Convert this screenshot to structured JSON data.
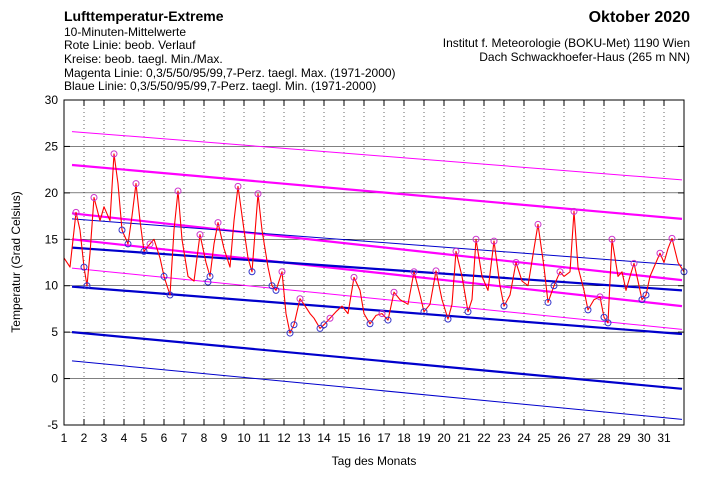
{
  "header": {
    "title": "Lufttemperatur-Extreme",
    "month": "Oktober 2020",
    "lines": [
      "10-Minuten-Mittelwerte",
      "Rote Linie: beob. Verlauf",
      "Kreise: beob. taegl. Min./Max.",
      "Magenta Linie: 0,3/5/50/95/99,7-Perz. taegl. Max. (1971-2000)",
      "Blaue Linie: 0,3/5/50/95/99,7-Perz. taegl. Min. (1971-2000)"
    ],
    "institute": "Institut f. Meteorologie (BOKU-Met) 1190 Wien",
    "location": "Dach Schwackhoefer-Haus (265 m NN)"
  },
  "chart_data": {
    "type": "line",
    "xlabel": "Tag des Monats",
    "ylabel": "Temperatur (Grad Celsius)",
    "xlim": [
      1,
      32
    ],
    "ylim": [
      -5,
      30
    ],
    "xticks": [
      "1",
      "2",
      "3",
      "4",
      "5",
      "6",
      "7",
      "8",
      "9",
      "10",
      "11",
      "12",
      "13",
      "14",
      "15",
      "16",
      "17",
      "18",
      "19",
      "20",
      "21",
      "22",
      "23",
      "24",
      "25",
      "26",
      "27",
      "28",
      "29",
      "30",
      "31"
    ],
    "yticks": [
      "-5",
      "0",
      "5",
      "10",
      "15",
      "20",
      "25",
      "30"
    ],
    "grid": true,
    "colors": {
      "observed": "#ff0000",
      "max_percentiles": "#ff00ff",
      "min_percentiles": "#0000cc",
      "circles": "#9900cc"
    },
    "max_percentiles": [
      {
        "percentile": "0,3",
        "start": 11.9,
        "end": 5.3
      },
      {
        "percentile": "5",
        "start": 15.0,
        "end": 7.8
      },
      {
        "percentile": "50",
        "start": 17.8,
        "end": 10.6
      },
      {
        "percentile": "95",
        "start": 23.0,
        "end": 17.2
      },
      {
        "percentile": "99,7",
        "start": 26.6,
        "end": 21.4
      }
    ],
    "min_percentiles": [
      {
        "percentile": "0,3",
        "start": 1.9,
        "end": -4.4
      },
      {
        "percentile": "5",
        "start": 5.0,
        "end": -1.1
      },
      {
        "percentile": "50",
        "start": 9.9,
        "end": 4.8
      },
      {
        "percentile": "95",
        "start": 14.1,
        "end": 9.5
      },
      {
        "percentile": "99,7",
        "start": 17.2,
        "end": 12.2
      }
    ],
    "observed": [
      [
        1.0,
        13.0
      ],
      [
        1.3,
        12.0
      ],
      [
        1.6,
        17.9
      ],
      [
        1.8,
        16.0
      ],
      [
        2.0,
        12.0
      ],
      [
        2.15,
        10.0
      ],
      [
        2.3,
        13.5
      ],
      [
        2.5,
        19.5
      ],
      [
        2.8,
        17.0
      ],
      [
        3.0,
        18.5
      ],
      [
        3.3,
        17.0
      ],
      [
        3.5,
        24.2
      ],
      [
        3.7,
        21.0
      ],
      [
        3.9,
        16.0
      ],
      [
        4.2,
        14.5
      ],
      [
        4.4,
        17.5
      ],
      [
        4.6,
        21.0
      ],
      [
        4.8,
        17.0
      ],
      [
        5.0,
        13.7
      ],
      [
        5.3,
        14.5
      ],
      [
        5.5,
        15.0
      ],
      [
        5.8,
        13.0
      ],
      [
        6.0,
        11.0
      ],
      [
        6.3,
        9.0
      ],
      [
        6.5,
        16.0
      ],
      [
        6.7,
        20.2
      ],
      [
        6.9,
        15.0
      ],
      [
        7.2,
        11.0
      ],
      [
        7.5,
        10.5
      ],
      [
        7.8,
        15.5
      ],
      [
        8.1,
        12.5
      ],
      [
        8.3,
        11.0
      ],
      [
        8.5,
        14.5
      ],
      [
        8.7,
        16.8
      ],
      [
        9.0,
        14.0
      ],
      [
        9.3,
        12.0
      ],
      [
        9.5,
        17.0
      ],
      [
        9.7,
        20.7
      ],
      [
        10.0,
        16.0
      ],
      [
        10.2,
        13.0
      ],
      [
        10.4,
        11.5
      ],
      [
        10.7,
        19.9
      ],
      [
        10.9,
        16.0
      ],
      [
        11.2,
        12.0
      ],
      [
        11.4,
        10.0
      ],
      [
        11.6,
        9.5
      ],
      [
        11.9,
        11.5
      ],
      [
        12.1,
        7.0
      ],
      [
        12.3,
        4.9
      ],
      [
        12.5,
        5.8
      ],
      [
        12.8,
        8.6
      ],
      [
        13.0,
        8.0
      ],
      [
        13.3,
        7.0
      ],
      [
        13.5,
        6.5
      ],
      [
        13.8,
        5.4
      ],
      [
        14.0,
        5.8
      ],
      [
        14.3,
        6.5
      ],
      [
        14.6,
        7.2
      ],
      [
        14.9,
        7.8
      ],
      [
        15.2,
        7.0
      ],
      [
        15.5,
        10.9
      ],
      [
        15.8,
        9.5
      ],
      [
        16.0,
        7.0
      ],
      [
        16.3,
        5.9
      ],
      [
        16.6,
        6.8
      ],
      [
        16.9,
        7.0
      ],
      [
        17.2,
        6.3
      ],
      [
        17.5,
        9.3
      ],
      [
        17.8,
        8.5
      ],
      [
        18.2,
        8.0
      ],
      [
        18.5,
        11.5
      ],
      [
        18.8,
        9.0
      ],
      [
        19.0,
        7.2
      ],
      [
        19.3,
        8.0
      ],
      [
        19.6,
        11.6
      ],
      [
        19.9,
        8.5
      ],
      [
        20.2,
        6.4
      ],
      [
        20.4,
        8.0
      ],
      [
        20.6,
        13.7
      ],
      [
        20.9,
        11.0
      ],
      [
        21.2,
        7.2
      ],
      [
        21.4,
        8.5
      ],
      [
        21.6,
        15.0
      ],
      [
        21.9,
        11.0
      ],
      [
        22.2,
        9.5
      ],
      [
        22.5,
        14.8
      ],
      [
        22.8,
        10.0
      ],
      [
        23.0,
        7.8
      ],
      [
        23.3,
        9.0
      ],
      [
        23.6,
        12.5
      ],
      [
        23.9,
        10.5
      ],
      [
        24.2,
        10.0
      ],
      [
        24.5,
        14.0
      ],
      [
        24.7,
        16.6
      ],
      [
        25.0,
        12.0
      ],
      [
        25.2,
        8.2
      ],
      [
        25.5,
        10.0
      ],
      [
        25.8,
        11.5
      ],
      [
        26.0,
        11.0
      ],
      [
        26.3,
        11.5
      ],
      [
        26.5,
        18.0
      ],
      [
        26.7,
        12.0
      ],
      [
        27.0,
        9.5
      ],
      [
        27.2,
        7.4
      ],
      [
        27.5,
        8.5
      ],
      [
        27.8,
        8.8
      ],
      [
        28.0,
        6.6
      ],
      [
        28.2,
        6.0
      ],
      [
        28.4,
        15.0
      ],
      [
        28.7,
        11.0
      ],
      [
        28.9,
        11.5
      ],
      [
        29.1,
        9.5
      ],
      [
        29.3,
        11.0
      ],
      [
        29.5,
        12.4
      ],
      [
        29.7,
        10.5
      ],
      [
        29.9,
        8.5
      ],
      [
        30.1,
        9.0
      ],
      [
        30.3,
        11.0
      ],
      [
        30.5,
        12.0
      ],
      [
        30.8,
        13.5
      ],
      [
        31.0,
        12.5
      ],
      [
        31.2,
        14.0
      ],
      [
        31.4,
        15.1
      ],
      [
        31.7,
        12.5
      ],
      [
        32.0,
        11.5
      ]
    ],
    "daily_max": [
      [
        1.6,
        17.9
      ],
      [
        2.5,
        19.5
      ],
      [
        3.5,
        24.2
      ],
      [
        4.6,
        21.0
      ],
      [
        5.3,
        14.5
      ],
      [
        6.7,
        20.2
      ],
      [
        7.8,
        15.5
      ],
      [
        8.7,
        16.8
      ],
      [
        9.7,
        20.7
      ],
      [
        10.7,
        19.9
      ],
      [
        11.9,
        11.5
      ],
      [
        12.8,
        8.6
      ],
      [
        14.3,
        6.5
      ],
      [
        15.5,
        10.9
      ],
      [
        16.9,
        7.0
      ],
      [
        17.5,
        9.3
      ],
      [
        18.5,
        11.5
      ],
      [
        19.6,
        11.6
      ],
      [
        20.6,
        13.7
      ],
      [
        21.6,
        15.0
      ],
      [
        22.5,
        14.8
      ],
      [
        23.6,
        12.5
      ],
      [
        24.7,
        16.6
      ],
      [
        25.8,
        11.5
      ],
      [
        26.5,
        18.0
      ],
      [
        27.8,
        8.8
      ],
      [
        28.4,
        15.0
      ],
      [
        29.5,
        12.4
      ],
      [
        30.8,
        13.5
      ],
      [
        31.4,
        15.1
      ]
    ],
    "daily_min": [
      [
        2.15,
        10.0
      ],
      [
        2.0,
        12.0
      ],
      [
        3.9,
        16.0
      ],
      [
        4.2,
        14.5
      ],
      [
        5.0,
        13.7
      ],
      [
        6.3,
        9.0
      ],
      [
        6.0,
        11.0
      ],
      [
        8.3,
        11.0
      ],
      [
        8.2,
        10.4
      ],
      [
        10.4,
        11.5
      ],
      [
        11.4,
        10.0
      ],
      [
        11.6,
        9.5
      ],
      [
        12.3,
        4.9
      ],
      [
        12.5,
        5.8
      ],
      [
        13.8,
        5.4
      ],
      [
        14.0,
        5.8
      ],
      [
        16.3,
        5.9
      ],
      [
        17.2,
        6.3
      ],
      [
        19.0,
        7.2
      ],
      [
        20.2,
        6.4
      ],
      [
        21.2,
        7.2
      ],
      [
        23.0,
        7.8
      ],
      [
        25.2,
        8.2
      ],
      [
        25.5,
        10.0
      ],
      [
        27.2,
        7.4
      ],
      [
        28.2,
        6.0
      ],
      [
        28.0,
        6.6
      ],
      [
        29.9,
        8.5
      ],
      [
        30.1,
        9.0
      ],
      [
        32.0,
        11.5
      ]
    ]
  }
}
